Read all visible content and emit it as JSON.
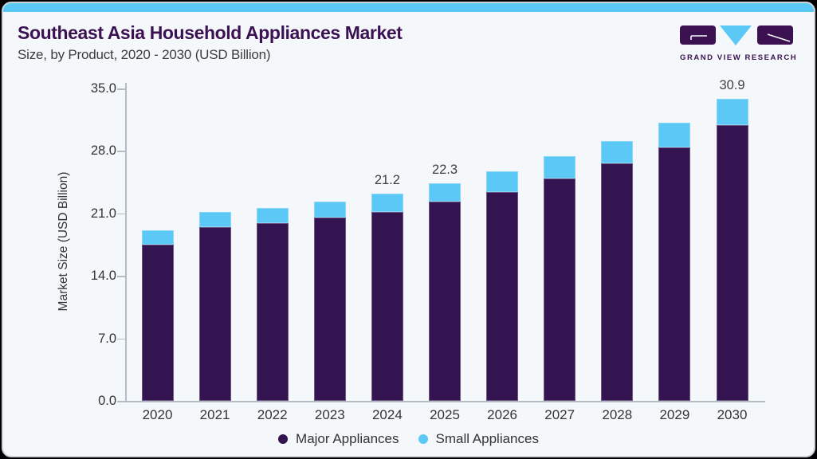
{
  "header": {
    "title": "Southeast Asia Household Appliances Market",
    "subtitle": "Size, by Product, 2020 - 2030 (USD Billion)"
  },
  "brand": {
    "name": "GRAND VIEW RESEARCH",
    "colors": {
      "purple": "#3b1152",
      "blue": "#5bc8f5"
    }
  },
  "chart_data": {
    "type": "bar",
    "stacked": true,
    "title": "Southeast Asia Household Appliances Market Size, by Product, 2020 - 2030 (USD Billion)",
    "categories": [
      "2020",
      "2021",
      "2022",
      "2023",
      "2024",
      "2025",
      "2026",
      "2027",
      "2028",
      "2029",
      "2030"
    ],
    "series": [
      {
        "name": "Major Appliances",
        "color": "#341450",
        "values": [
          17.5,
          19.5,
          19.9,
          20.5,
          21.2,
          22.3,
          23.4,
          24.9,
          26.6,
          28.4,
          30.9
        ]
      },
      {
        "name": "Small Appliances",
        "color": "#5bc8f5",
        "values": [
          1.6,
          1.7,
          1.7,
          1.8,
          2.0,
          2.1,
          2.3,
          2.5,
          2.5,
          2.8,
          2.9
        ]
      }
    ],
    "data_labels": [
      {
        "category_index": 4,
        "text": "21.2"
      },
      {
        "category_index": 5,
        "text": "22.3"
      },
      {
        "category_index": 10,
        "text": "30.9"
      }
    ],
    "xlabel": "",
    "ylabel": "Market Size (USD Billion)",
    "yticks": [
      "35.0",
      "28.0",
      "21.0",
      "14.0",
      "7.0",
      "0.0"
    ],
    "ylim": [
      0,
      35
    ],
    "grid": false,
    "legend_position": "bottom"
  },
  "legend": {
    "items": [
      {
        "label": "Major Appliances",
        "color": "#341450"
      },
      {
        "label": "Small Appliances",
        "color": "#5bc8f5"
      }
    ]
  }
}
